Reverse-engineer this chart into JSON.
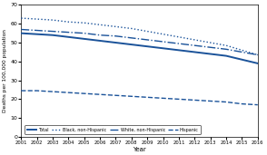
{
  "years": [
    2001,
    2002,
    2003,
    2004,
    2005,
    2006,
    2007,
    2008,
    2009,
    2010,
    2011,
    2012,
    2013,
    2014,
    2015,
    2016
  ],
  "total": [
    55.0,
    54.5,
    54.0,
    53.0,
    52.0,
    51.0,
    50.0,
    49.0,
    48.0,
    47.0,
    46.0,
    45.0,
    44.0,
    43.0,
    41.0,
    39.0
  ],
  "black_non_hisp": [
    63.0,
    62.5,
    62.0,
    61.0,
    60.5,
    59.5,
    58.5,
    57.5,
    56.0,
    54.5,
    53.0,
    51.5,
    50.0,
    48.5,
    46.0,
    43.5
  ],
  "white_non_hisp": [
    57.0,
    56.5,
    56.0,
    55.5,
    55.0,
    54.0,
    53.5,
    52.5,
    51.5,
    50.5,
    49.5,
    48.5,
    47.5,
    46.5,
    45.0,
    43.5
  ],
  "hispanic": [
    24.5,
    24.5,
    24.0,
    23.5,
    23.0,
    22.5,
    22.0,
    21.5,
    21.0,
    20.5,
    20.0,
    19.5,
    19.0,
    18.5,
    17.5,
    17.0
  ],
  "line_color": "#1a5299",
  "ylabel": "Deaths per 100,000 population",
  "xlabel": "Year",
  "ylim": [
    0,
    70
  ],
  "yticks": [
    0,
    10,
    20,
    30,
    40,
    50,
    60,
    70
  ],
  "legend_labels": [
    "Total",
    "Black, non-Hispanic",
    "White, non-Hispanic",
    "Hispanic"
  ],
  "bg_color": "#ffffff"
}
